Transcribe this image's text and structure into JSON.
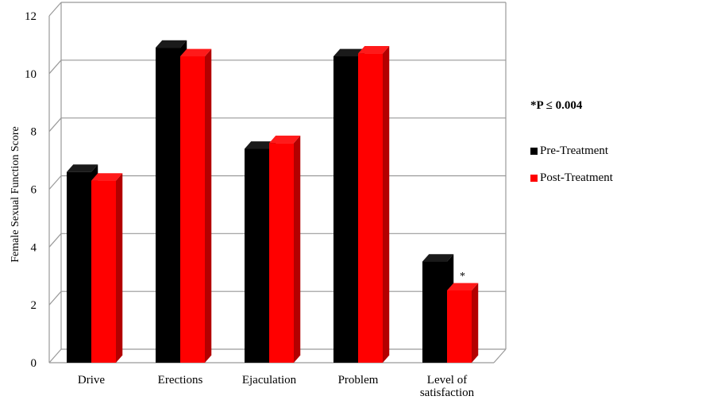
{
  "chart_data": {
    "type": "bar",
    "title": "",
    "ylabel": "Female Sexual Function Score",
    "xlabel": "",
    "ylim": [
      0,
      12
    ],
    "yticks": [
      0,
      2,
      4,
      6,
      8,
      10,
      12
    ],
    "grid": true,
    "legend_position": "right",
    "categories": [
      [
        "Drive"
      ],
      [
        "Erections"
      ],
      [
        "Ejaculation"
      ],
      [
        "Problem"
      ],
      [
        "Level of",
        "satisfaction"
      ]
    ],
    "series": [
      {
        "name": "Pre-Treatment",
        "color": "#000000",
        "values": [
          6.6,
          10.9,
          7.4,
          10.6,
          3.5
        ]
      },
      {
        "name": "Post-Treatment",
        "color": "#ff0000",
        "values": [
          6.3,
          10.6,
          7.6,
          10.7,
          2.5
        ]
      }
    ],
    "annotations": [
      {
        "text": "*",
        "category_index": 4,
        "series_index": 1
      }
    ]
  },
  "legend": {
    "note": "*P ≤ 0.004",
    "items": [
      {
        "label": "Pre-Treatment",
        "color": "#000000"
      },
      {
        "label": "Post-Treatment",
        "color": "#ff0000"
      }
    ]
  }
}
